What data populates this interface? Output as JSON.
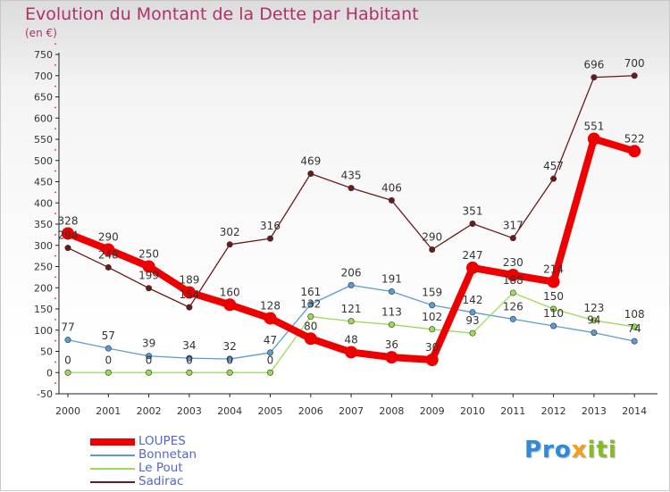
{
  "title": "Evolution du Montant de la Dette par Habitant",
  "unit": "(en €)",
  "brand": {
    "part1": "Pro",
    "part2": "x",
    "part3": "iti"
  },
  "chart_data": {
    "type": "line",
    "title": "Evolution du Montant de la Dette par Habitant",
    "ylabel": "(en €)",
    "xlabel": "",
    "x": [
      "2000",
      "2001",
      "2002",
      "2003",
      "2004",
      "2005",
      "2006",
      "2007",
      "2008",
      "2009",
      "2010",
      "2011",
      "2012",
      "2013",
      "2014"
    ],
    "ylim": [
      -50,
      750
    ],
    "yticks": [
      -50,
      0,
      50,
      100,
      150,
      200,
      250,
      300,
      350,
      400,
      450,
      500,
      550,
      600,
      650,
      700,
      750
    ],
    "grid": false,
    "legend_position": "bottom-left",
    "series": [
      {
        "name": "LOUPES",
        "color": "#ee0000",
        "values": [
          328,
          290,
          250,
          189,
          160,
          128,
          80,
          48,
          36,
          30,
          247,
          230,
          214,
          551,
          522
        ]
      },
      {
        "name": "Bonnetan",
        "color": "#5b9bd5",
        "values": [
          77,
          57,
          39,
          34,
          32,
          47,
          161,
          206,
          191,
          159,
          142,
          126,
          110,
          94,
          74
        ]
      },
      {
        "name": "Le Pout",
        "color": "#99dd55",
        "values": [
          0,
          0,
          0,
          0,
          0,
          0,
          132,
          121,
          113,
          102,
          93,
          188,
          150,
          123,
          108
        ]
      },
      {
        "name": "Sadirac",
        "color": "#6b1a1a",
        "values": [
          294,
          248,
          199,
          154,
          302,
          316,
          469,
          435,
          406,
          290,
          351,
          317,
          457,
          696,
          700
        ]
      }
    ]
  }
}
